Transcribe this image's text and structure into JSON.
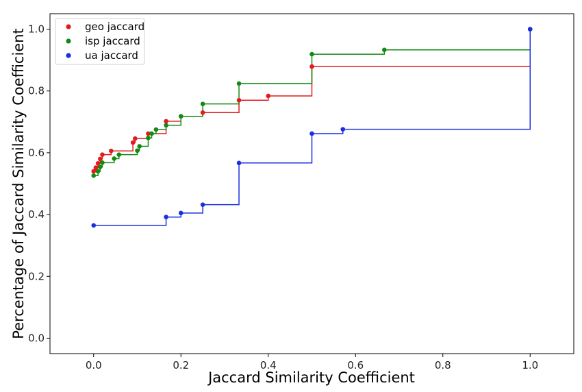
{
  "chart_data": {
    "type": "line",
    "drawstyle": "steps-post",
    "xlabel": "Jaccard Similarity Coefficient",
    "ylabel": "Percentage of Jaccard Similarity Coefficient",
    "xlim": [
      -0.1,
      1.1
    ],
    "ylim": [
      -0.05,
      1.05
    ],
    "x_ticks": [
      0.0,
      0.2,
      0.4,
      0.6,
      0.8,
      1.0
    ],
    "x_tick_labels": [
      "0.0",
      "0.2",
      "0.4",
      "0.6",
      "0.8",
      "1.0"
    ],
    "y_ticks": [
      0.0,
      0.2,
      0.4,
      0.6,
      0.8,
      1.0
    ],
    "y_tick_labels": [
      "0.0",
      "0.2",
      "0.4",
      "0.6",
      "0.8",
      "1.0"
    ],
    "grid": false,
    "legend_position": "top-left",
    "series": [
      {
        "name": "geo jaccard",
        "color": "#e41a1c",
        "x": [
          0.0,
          0.005,
          0.01,
          0.015,
          0.02,
          0.04,
          0.09,
          0.095,
          0.125,
          0.166,
          0.2,
          0.25,
          0.333,
          0.4,
          0.5,
          1.0
        ],
        "y": [
          0.54,
          0.552,
          0.566,
          0.58,
          0.594,
          0.606,
          0.633,
          0.646,
          0.662,
          0.702,
          0.718,
          0.73,
          0.77,
          0.784,
          0.879,
          1.0
        ]
      },
      {
        "name": "isp jaccard",
        "color": "#138a13",
        "x": [
          0.0,
          0.01,
          0.015,
          0.02,
          0.047,
          0.058,
          0.1,
          0.105,
          0.125,
          0.133,
          0.143,
          0.166,
          0.2,
          0.25,
          0.333,
          0.5,
          0.666,
          1.0
        ],
        "y": [
          0.526,
          0.54,
          0.554,
          0.568,
          0.581,
          0.594,
          0.607,
          0.621,
          0.648,
          0.662,
          0.675,
          0.689,
          0.718,
          0.758,
          0.824,
          0.919,
          0.933,
          1.0
        ]
      },
      {
        "name": "ua jaccard",
        "color": "#1a2fe0",
        "x": [
          0.0,
          0.166,
          0.2,
          0.25,
          0.333,
          0.5,
          0.571,
          1.0
        ],
        "y": [
          0.365,
          0.392,
          0.405,
          0.432,
          0.567,
          0.662,
          0.676,
          1.0
        ]
      }
    ]
  }
}
